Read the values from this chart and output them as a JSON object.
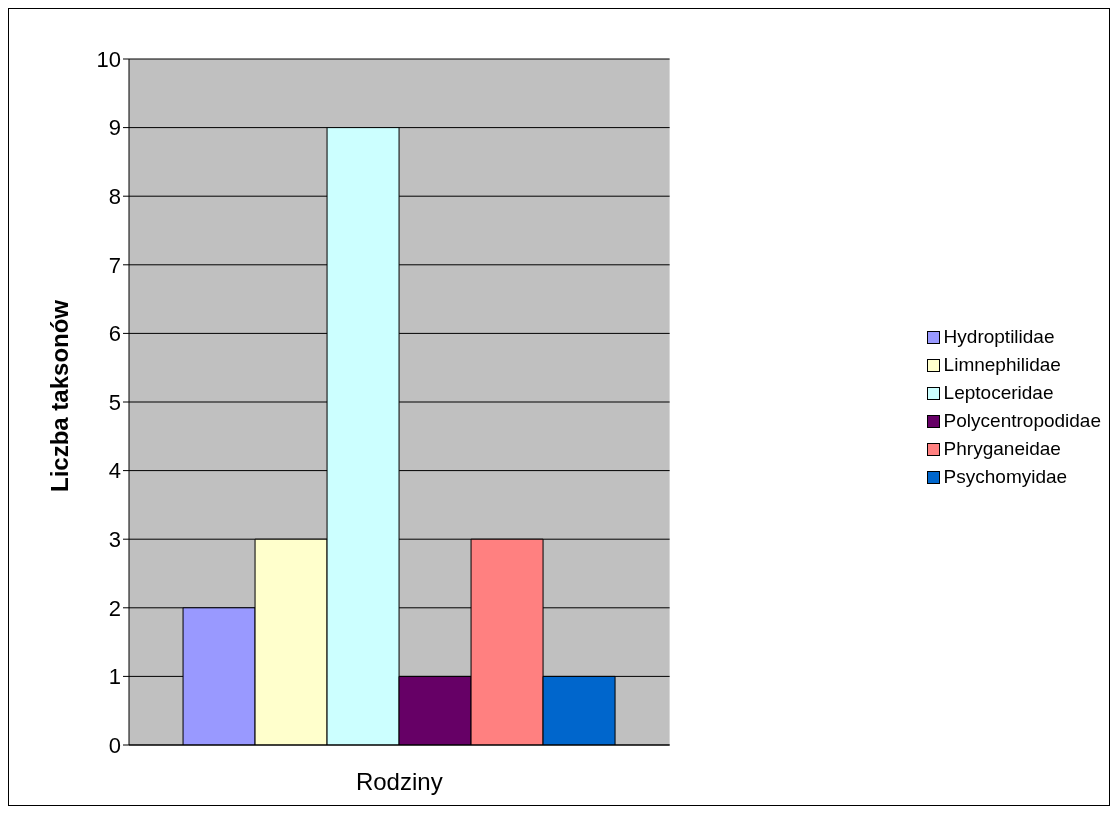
{
  "chart_data": {
    "type": "bar",
    "xlabel": "Rodziny",
    "ylabel": "Liczba taksonów",
    "categories": [
      null
    ],
    "series": [
      {
        "name": "Hydroptilidae",
        "color": "#9999ff",
        "values": [
          2
        ]
      },
      {
        "name": "Limnephilidae",
        "color": "#ffffcc",
        "values": [
          3
        ]
      },
      {
        "name": "Leptoceridae",
        "color": "#ccffff",
        "values": [
          9
        ]
      },
      {
        "name": "Polycentropodidae",
        "color": "#660066",
        "values": [
          1
        ]
      },
      {
        "name": "Phryganeidae",
        "color": "#ff8080",
        "values": [
          3
        ]
      },
      {
        "name": "Psychomyidae",
        "color": "#0066cc",
        "values": [
          1
        ]
      }
    ],
    "ylim": [
      0,
      10
    ],
    "yticks": [
      0,
      1,
      2,
      3,
      4,
      5,
      6,
      7,
      8,
      9,
      10
    ],
    "grid": "y",
    "legend": "right"
  }
}
